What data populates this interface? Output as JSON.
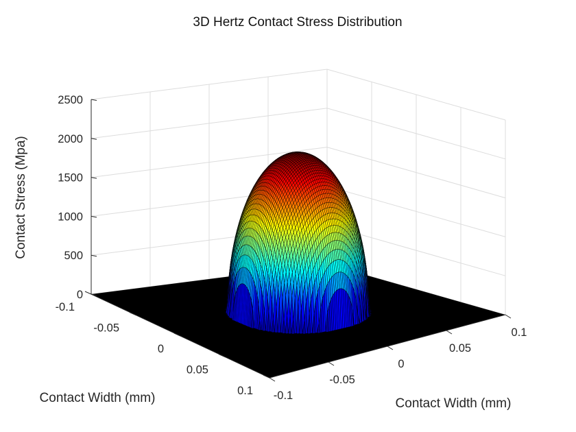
{
  "chart_data": {
    "type": "surface",
    "title": "3D Hertz Contact Stress Distribution",
    "xlabel": "Contact Width (mm)",
    "ylabel": "Contact Width (mm)",
    "zlabel": "Contact Stress (Mpa)",
    "xlim": [
      -0.1,
      0.1
    ],
    "ylim": [
      -0.1,
      0.1
    ],
    "zlim": [
      0,
      2500
    ],
    "x_ticks": [
      -0.1,
      -0.05,
      0,
      0.05,
      0.1
    ],
    "x_tick_labels": [
      "-0.1",
      "-0.05",
      "0",
      "0.05",
      "0.1"
    ],
    "y_ticks": [
      -0.1,
      -0.05,
      0,
      0.05,
      0.1
    ],
    "y_tick_labels": [
      "-0.1",
      "-0.05",
      "0",
      "0.05",
      "0.1"
    ],
    "z_ticks": [
      0,
      500,
      1000,
      1500,
      2000,
      2500
    ],
    "z_tick_labels": [
      "0",
      "500",
      "1000",
      "1500",
      "2000",
      "2500"
    ],
    "surface": {
      "formula": "p0 * sqrt(1 - (x^2 + y^2) / a^2)",
      "peak_pressure": 2050,
      "contact_radius": 0.048,
      "colormap": "jet",
      "edge_color": "#000000"
    },
    "grid": true
  }
}
